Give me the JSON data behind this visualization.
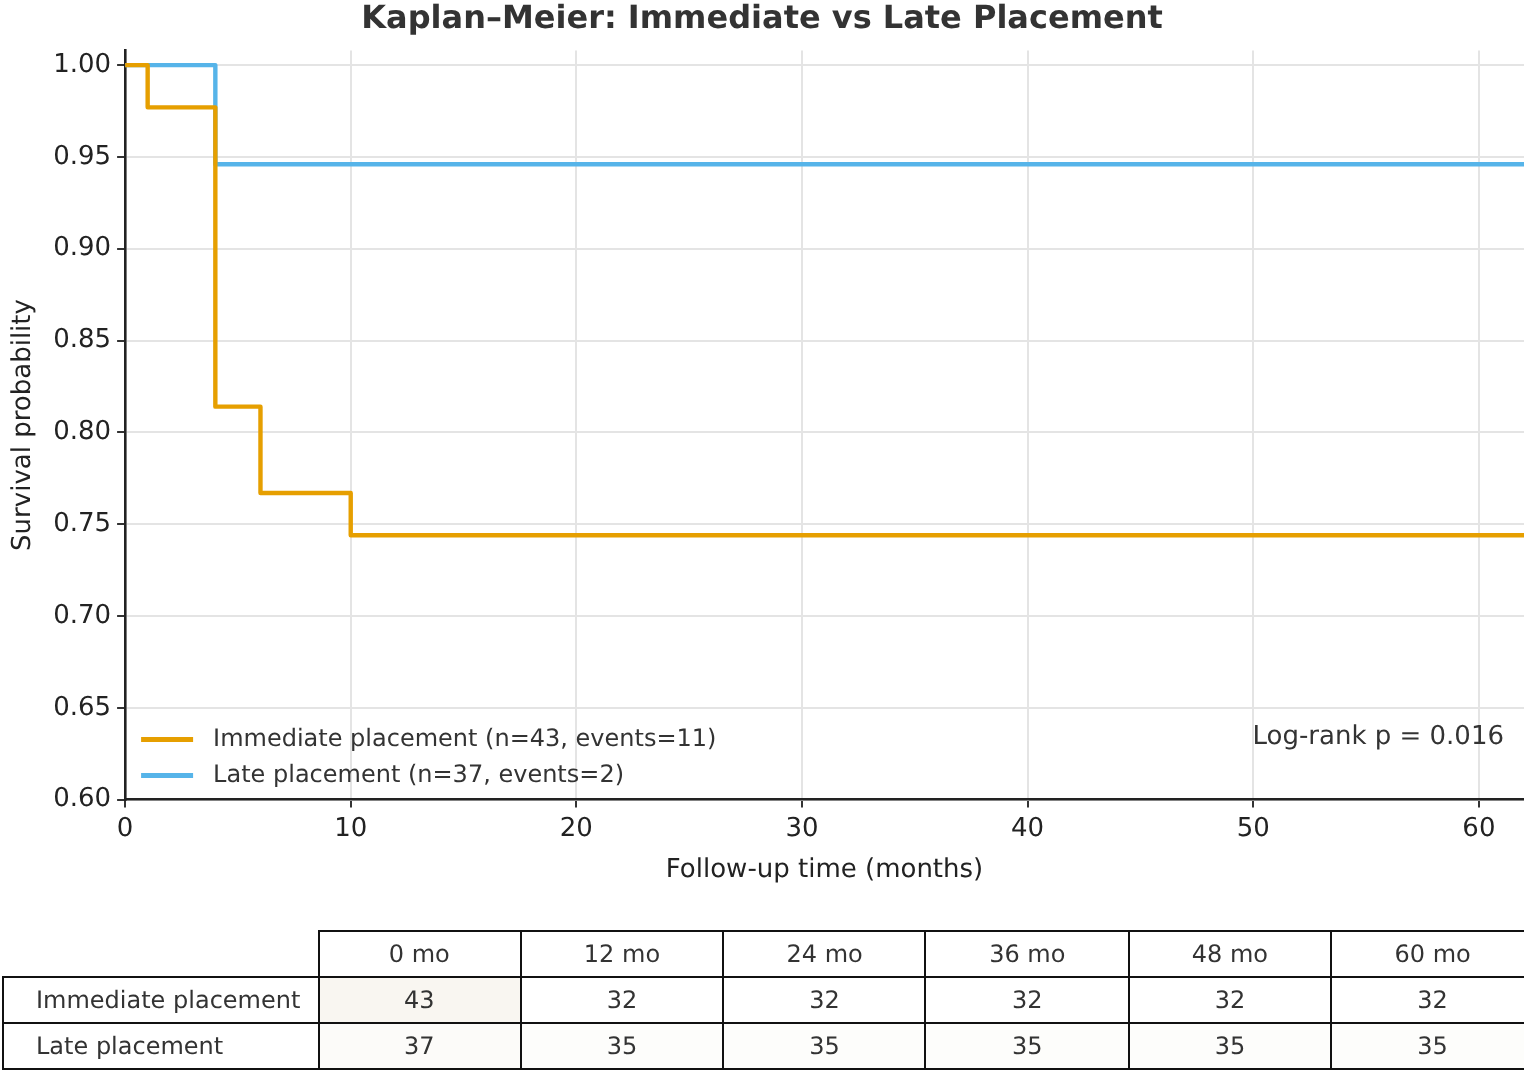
{
  "chart_data": [
    {
      "type": "step",
      "title": "Kaplan–Meier: Immediate vs Late Placement",
      "xlabel": "Follow-up time (months)",
      "ylabel": "Survival probability",
      "series": [
        {
          "name": "Immediate placement (n=43, events=11)",
          "color": "#e69f00",
          "x": [
            0,
            1,
            4,
            6,
            10,
            62
          ],
          "values": [
            1,
            0.977,
            0.814,
            0.767,
            0.744,
            0.744
          ]
        },
        {
          "name": "Late placement (n=37, events=2)",
          "color": "#56b4e9",
          "x": [
            0,
            4,
            62
          ],
          "values": [
            1,
            0.946,
            0.946
          ]
        }
      ],
      "xlim": [
        0,
        62
      ],
      "xticks": [
        0,
        10,
        20,
        30,
        40,
        50,
        60
      ],
      "ylim": [
        0.6,
        1.008
      ],
      "yticks": [
        {
          "value": 0.6,
          "label": "0.60"
        },
        {
          "value": 0.65,
          "label": "0.65"
        },
        {
          "value": 0.7,
          "label": "0.70"
        },
        {
          "value": 0.75,
          "label": "0.75"
        },
        {
          "value": 0.8,
          "label": "0.80"
        },
        {
          "value": 0.85,
          "label": "0.85"
        },
        {
          "value": 0.9,
          "label": "0.90"
        },
        {
          "value": 0.95,
          "label": "0.95"
        },
        {
          "value": 1.0,
          "label": "1.00"
        }
      ],
      "grid": true,
      "legend": "bottom left",
      "annotations": [
        "Log-rank p = 0.016"
      ]
    },
    {
      "type": "heatmap",
      "categories": [
        "0 mo",
        "12 mo",
        "24 mo",
        "36 mo",
        "48 mo",
        "60 mo"
      ],
      "y_categories": [
        "Immediate placement",
        "Late placement"
      ],
      "cells": [
        [
          43,
          32,
          32,
          32,
          32,
          32
        ],
        [
          37,
          35,
          35,
          35,
          35,
          35
        ]
      ],
      "cell_labels": [
        [
          "43",
          "32",
          "32",
          "32",
          "32",
          "32"
        ],
        [
          "37",
          "35",
          "35",
          "35",
          "35",
          "35"
        ]
      ]
    }
  ]
}
